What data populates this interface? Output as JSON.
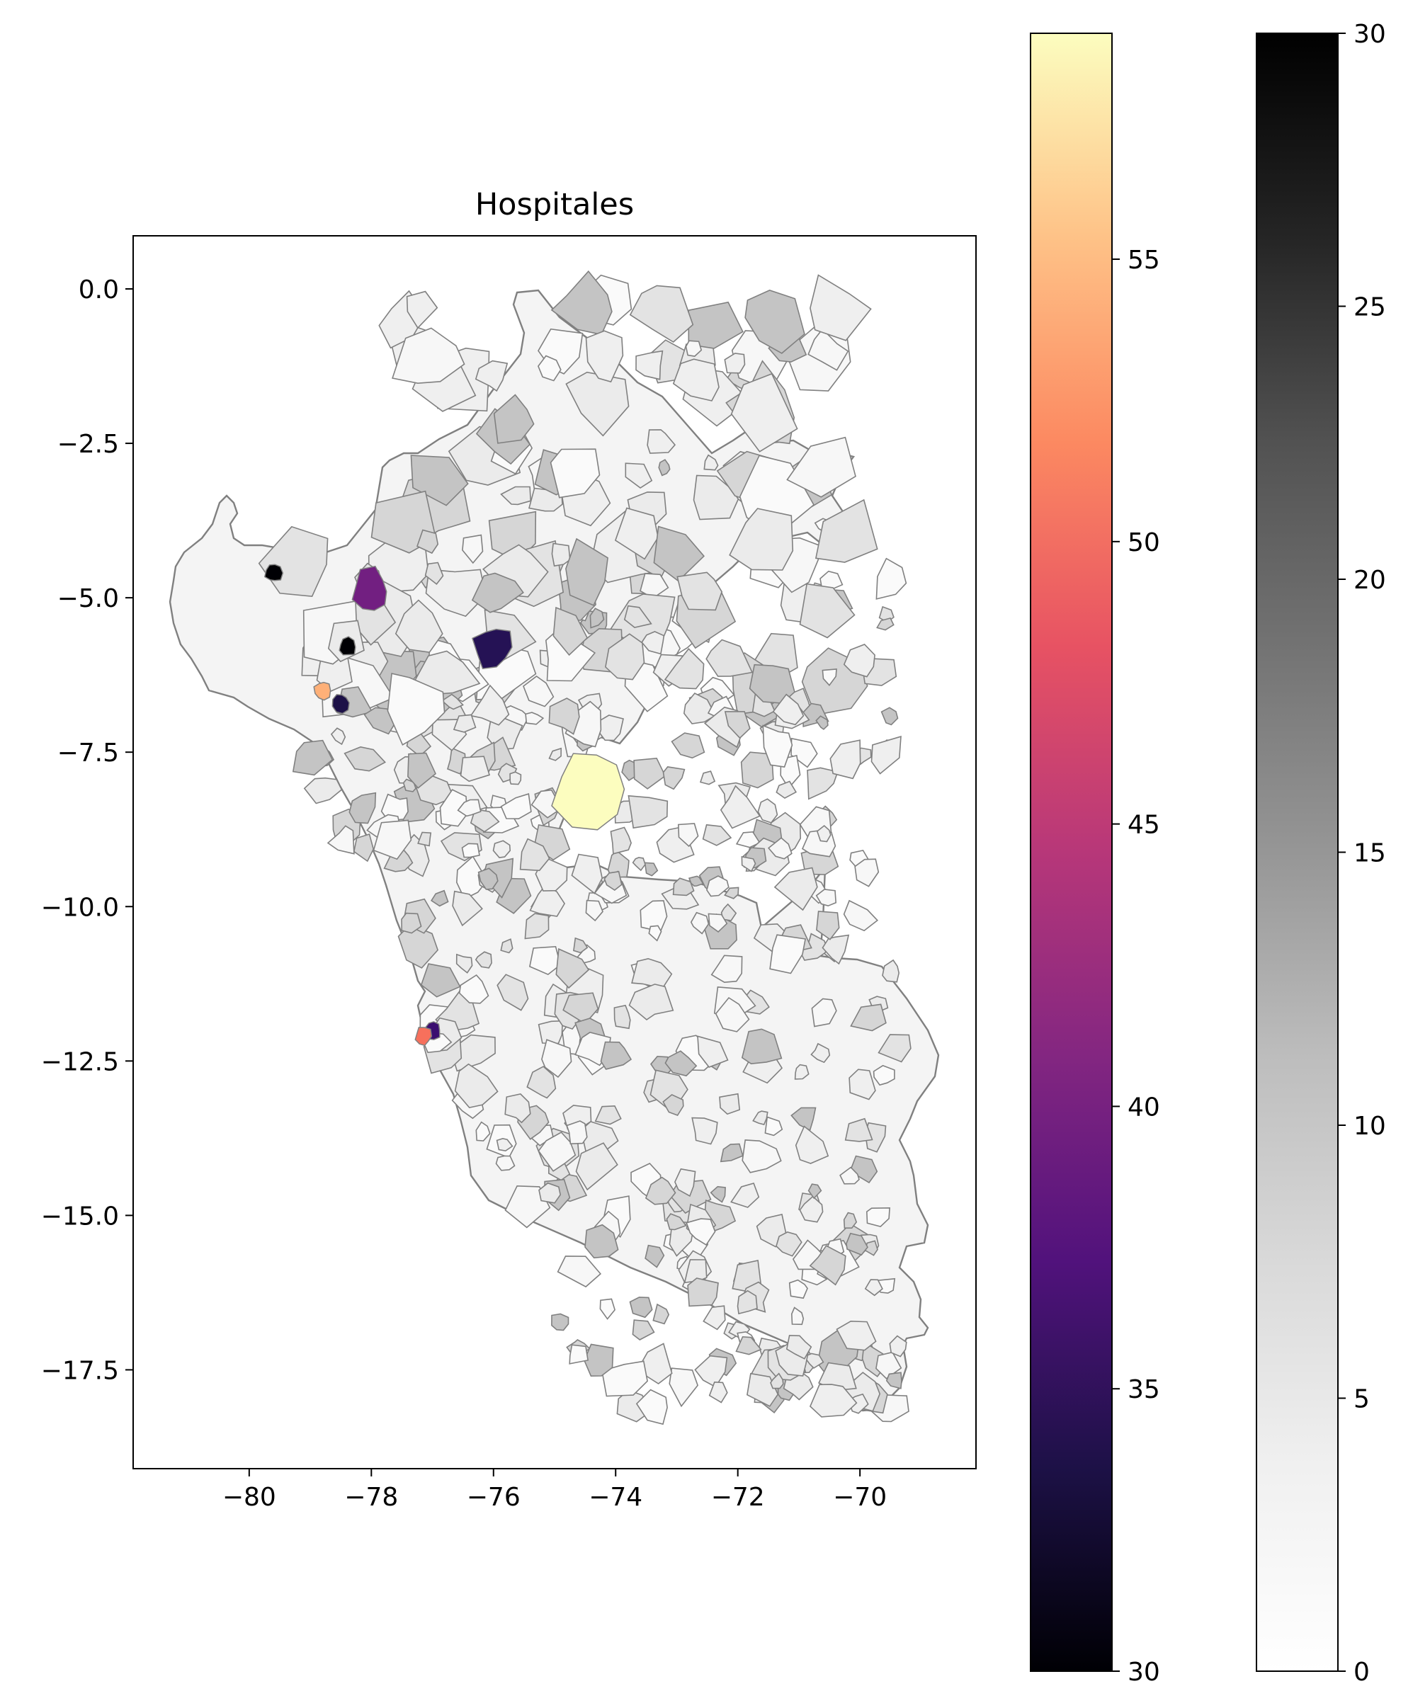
{
  "title": "Hospitales",
  "map": {
    "xaxis": {
      "range": [
        -81.9,
        -68.1
      ],
      "ticks": [
        -80,
        -78,
        -76,
        -74,
        -72,
        -70
      ],
      "tick_labels": [
        "−80",
        "−78",
        "−76",
        "−74",
        "−72",
        "−70"
      ]
    },
    "yaxis": {
      "range": [
        -19.1,
        0.86
      ],
      "ticks": [
        0.0,
        -2.5,
        -5.0,
        -7.5,
        -10.0,
        -12.5,
        -15.0,
        -17.5
      ],
      "tick_labels": [
        "0.0",
        "−2.5",
        "−5.0",
        "−7.5",
        "−10.0",
        "−12.5",
        "−15.0",
        "−17.5"
      ]
    },
    "boundary_color": "#808080",
    "highlighted_regions": [
      {
        "lon": -74.4,
        "lat": -8.1,
        "value": 59,
        "color": "#fcfdbf"
      },
      {
        "lon": -78.0,
        "lat": -4.9,
        "value": 39,
        "color": "#721f81"
      },
      {
        "lon": -76.0,
        "lat": -5.8,
        "value": 33,
        "color": "#251255"
      },
      {
        "lon": -79.6,
        "lat": -4.6,
        "value": 30,
        "color": "#000004"
      },
      {
        "lon": -78.4,
        "lat": -5.8,
        "value": 30,
        "color": "#000004"
      },
      {
        "lon": -78.8,
        "lat": -6.5,
        "value": 55,
        "color": "#feb078"
      },
      {
        "lon": -78.5,
        "lat": -6.7,
        "value": 34,
        "color": "#1d1147"
      },
      {
        "lon": -77.0,
        "lat": -12.0,
        "value": 37,
        "color": "#3b0f70"
      },
      {
        "lon": -77.15,
        "lat": -12.1,
        "value": 52,
        "color": "#f7705c"
      }
    ]
  },
  "colorbars": [
    {
      "name": "magma",
      "min": 30,
      "max": 59,
      "ticks": [
        30,
        35,
        40,
        45,
        50,
        55
      ],
      "tick_labels": [
        "30",
        "35",
        "40",
        "45",
        "50",
        "55"
      ],
      "colors": [
        "#000004",
        "#1d1147",
        "#51127c",
        "#832681",
        "#b73779",
        "#e75263",
        "#fc8961",
        "#fec287",
        "#fcfdbf"
      ]
    },
    {
      "name": "Greys",
      "min": 0,
      "max": 30,
      "ticks": [
        0,
        5,
        10,
        15,
        20,
        25,
        30
      ],
      "tick_labels": [
        "0",
        "5",
        "10",
        "15",
        "20",
        "25",
        "30"
      ],
      "colors": [
        "#ffffff",
        "#f0f0f0",
        "#d9d9d9",
        "#bdbdbd",
        "#969696",
        "#737373",
        "#525252",
        "#252525",
        "#000000"
      ]
    }
  ]
}
